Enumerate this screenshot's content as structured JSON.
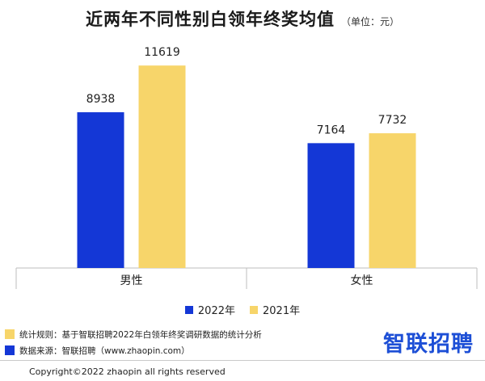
{
  "header": {
    "title": "近两年不同性别白领年终奖均值",
    "unit": "（单位：元）"
  },
  "colors": {
    "blue": "#1437d6",
    "yellow": "#f7d56a",
    "axis": "#bdbdbd"
  },
  "chart_data": {
    "type": "bar",
    "title": "近两年不同性别白领年终奖均值",
    "unit": "（单位：元）",
    "categories": [
      "男性",
      "女性"
    ],
    "series": [
      {
        "name": "2022年",
        "values": [
          8938,
          7164
        ]
      },
      {
        "name": "2021年",
        "values": [
          11619,
          7732
        ]
      }
    ],
    "ylim": [
      0,
      12600
    ],
    "grid": false,
    "legend_position": "bottom-center"
  },
  "footer": {
    "note1": "统计规则：基于智联招聘2022年白领年终奖调研数据的统计分析",
    "note2": "数据来源：智联招聘（www.zhaopin.com）",
    "brand": "智联招聘",
    "copyright": "Copyright©2022 zhaopin all rights reserved"
  }
}
